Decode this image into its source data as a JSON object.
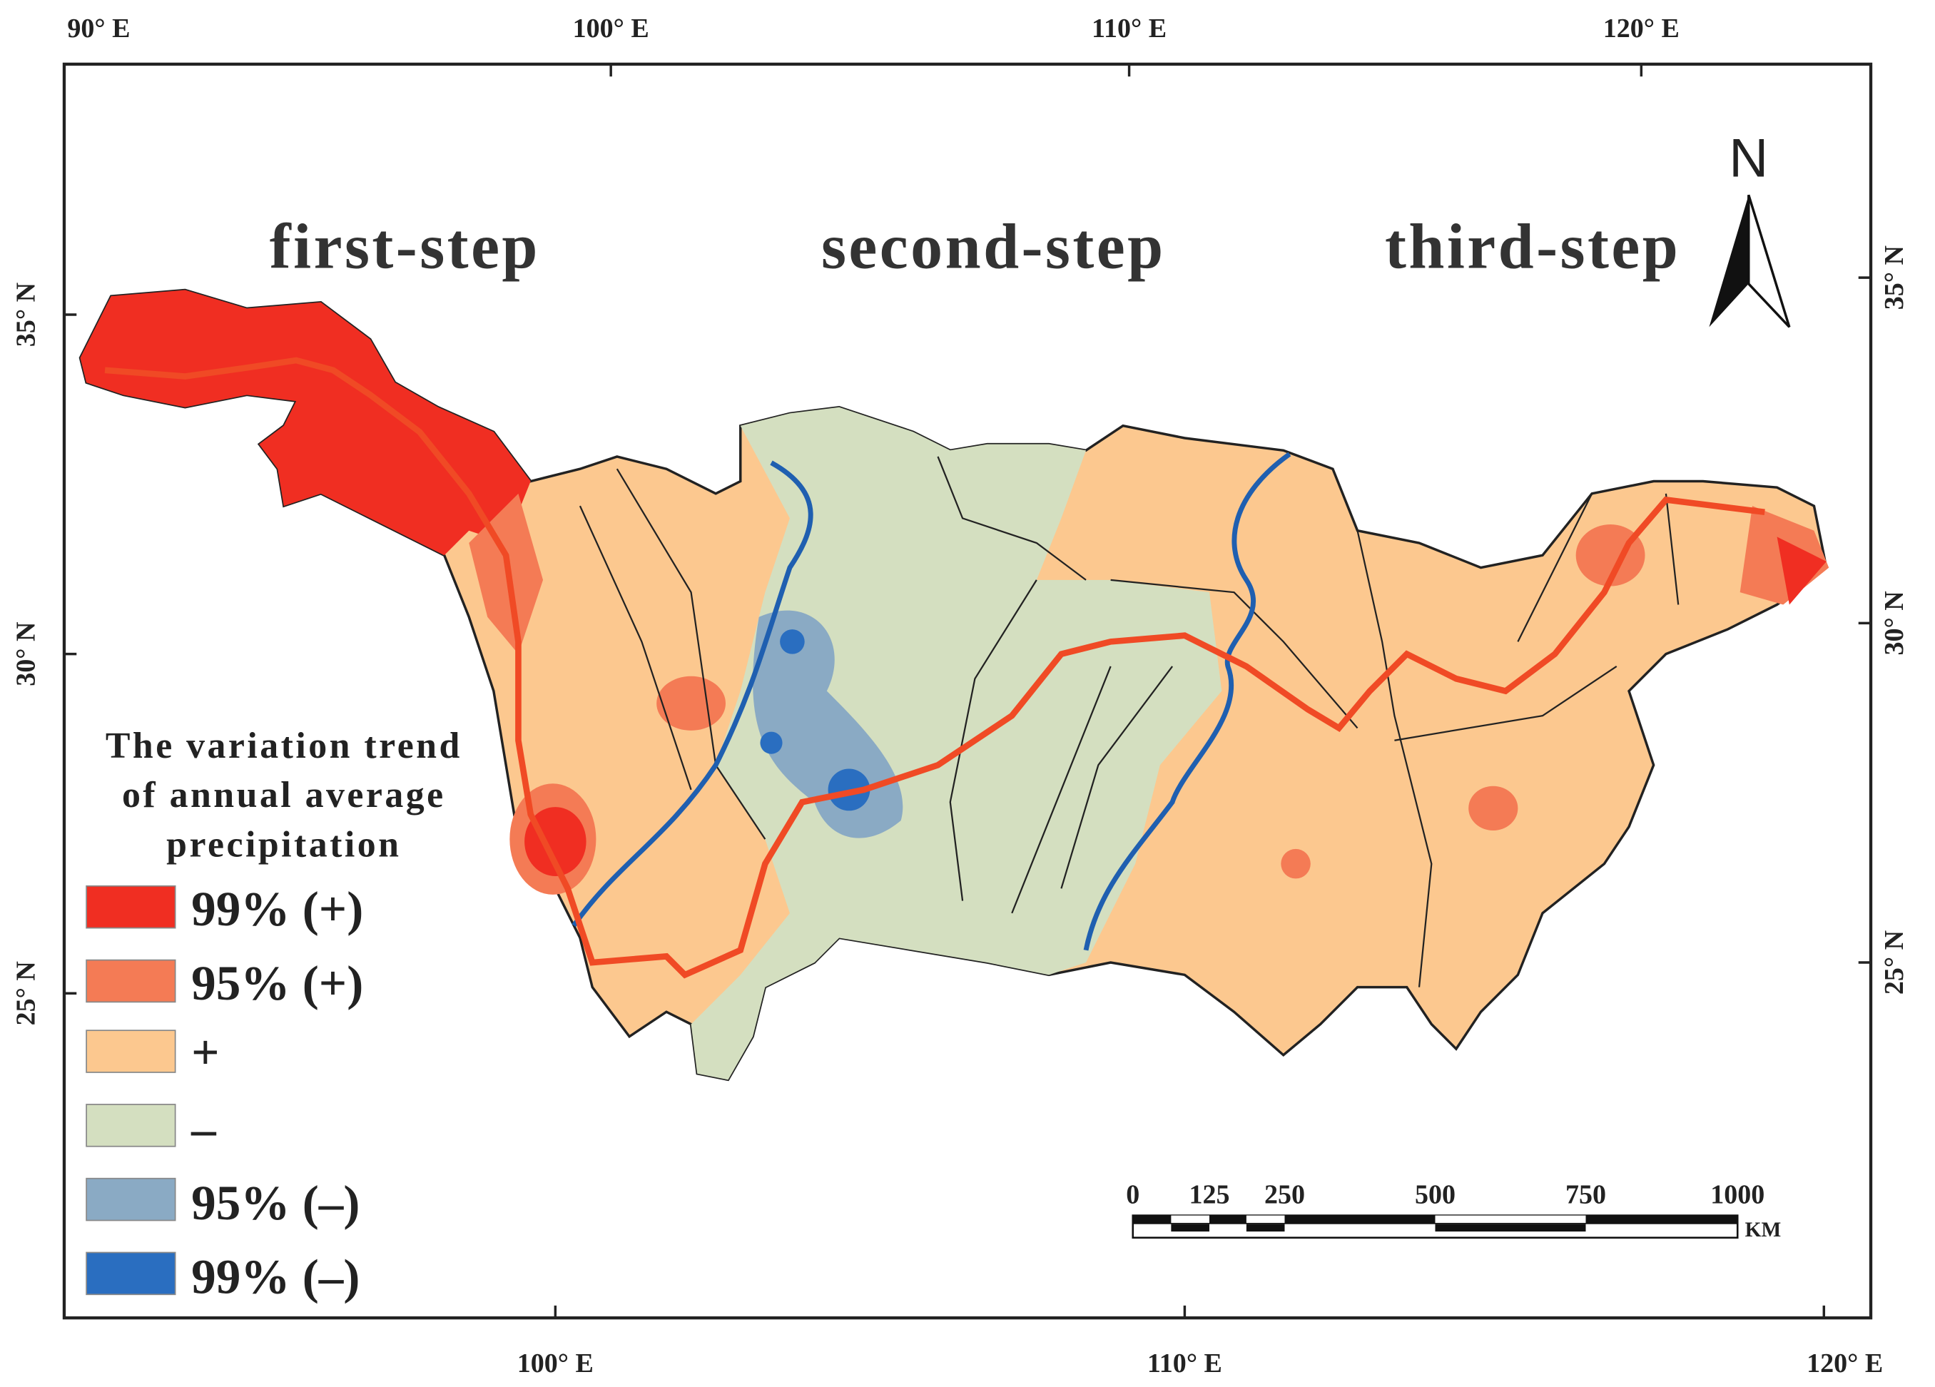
{
  "axes": {
    "top": [
      "90° E",
      "100° E",
      "110° E",
      "120° E"
    ],
    "bottom": [
      "100° E",
      "110° E",
      "120° E"
    ],
    "left": [
      "35° N",
      "30° N",
      "25° N"
    ],
    "right": [
      "35° N",
      "30° N",
      "25° N"
    ]
  },
  "regions": [
    "first-step",
    "second-step",
    "third-step"
  ],
  "north": "N",
  "legend": {
    "title": [
      "The variation trend",
      "of annual average",
      "precipitation"
    ],
    "items": [
      "99% (+)",
      "95% (+)",
      "+",
      "–",
      "95% (–)",
      "99% (–)"
    ]
  },
  "scale_bar": {
    "ticks": [
      "0",
      "125",
      "250",
      "500",
      "750",
      "1000"
    ],
    "unit": "KM"
  }
}
